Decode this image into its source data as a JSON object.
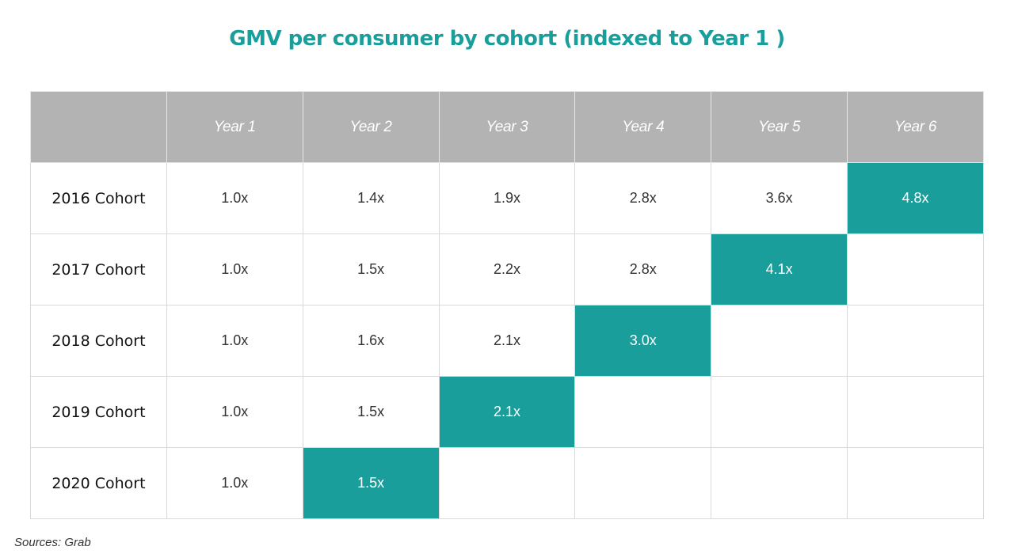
{
  "title": "GMV per consumer by cohort (indexed to Year 1 )",
  "source": "Sources: Grab",
  "colors": {
    "title": "#1a9e9c",
    "highlight": "#1a9e9c",
    "header_bg": "#b3b3b3"
  },
  "chart_data": {
    "type": "table",
    "title": "GMV per consumer by cohort (indexed to Year 1 )",
    "columns": [
      "",
      "Year 1",
      "Year 2",
      "Year 3",
      "Year 4",
      "Year 5",
      "Year 6"
    ],
    "rows": [
      {
        "label": "2016 Cohort",
        "values": [
          "1.0x",
          "1.4x",
          "1.9x",
          "2.8x",
          "3.6x",
          "4.8x"
        ]
      },
      {
        "label": "2017 Cohort",
        "values": [
          "1.0x",
          "1.5x",
          "2.2x",
          "2.8x",
          "4.1x",
          ""
        ]
      },
      {
        "label": "2018 Cohort",
        "values": [
          "1.0x",
          "1.6x",
          "2.1x",
          "3.0x",
          "",
          ""
        ]
      },
      {
        "label": "2019 Cohort",
        "values": [
          "1.0x",
          "1.5x",
          "2.1x",
          "",
          "",
          ""
        ]
      },
      {
        "label": "2020 Cohort",
        "values": [
          "1.0x",
          "1.5x",
          "",
          "",
          "",
          ""
        ]
      }
    ],
    "highlighted": [
      "2016 Cohort / Year 6",
      "2017 Cohort / Year 5",
      "2018 Cohort / Year 4",
      "2019 Cohort / Year 3",
      "2020 Cohort / Year 2"
    ]
  }
}
